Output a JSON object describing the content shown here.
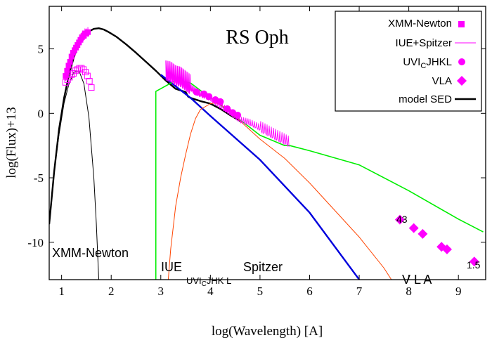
{
  "chart_data": {
    "type": "line",
    "title": "RS Oph",
    "xlabel": "log(Wavelength) [A]",
    "ylabel": "log(Flux)+13",
    "xlim": [
      0.75,
      9.55
    ],
    "ylim": [
      -12.9,
      8.3
    ],
    "xticks": [
      1,
      2,
      3,
      4,
      5,
      6,
      7,
      8,
      9
    ],
    "yticks": [
      -10,
      -5,
      0,
      5
    ],
    "grid": false,
    "legend_position": "top-right",
    "legend": [
      {
        "label": "XMM-Newton",
        "color": "#ff00ff",
        "marker": "square"
      },
      {
        "label": "IUE+Spitzer",
        "color": "#ff00ff",
        "marker": "line"
      },
      {
        "label": "UVI",
        "label_sub": "C",
        "label_tail": "JHKL",
        "color": "#ff00ff",
        "marker": "circle"
      },
      {
        "label": "VLA",
        "color": "#ff00ff",
        "marker": "diamond"
      },
      {
        "label": "model SED",
        "color": "#000000",
        "marker": "thick-line"
      }
    ],
    "annotations": {
      "xmm": "XMM-Newton",
      "iue": "IUE",
      "uv_pre": "UVI",
      "uv_sub": "C",
      "uv_post": "JHK L",
      "spitzer": "Spitzer",
      "vla": "V L A",
      "vla_left": "43",
      "vla_right": "1.5"
    },
    "series": [
      {
        "name": "model SED",
        "color": "#000000",
        "style": "thick",
        "x": [
          0.75,
          0.85,
          0.95,
          1.05,
          1.15,
          1.25,
          1.35,
          1.45,
          1.55,
          1.65,
          1.75,
          1.85,
          1.95,
          2.1,
          2.3,
          2.5,
          2.7,
          2.9,
          3.1,
          3.3,
          3.5,
          3.55,
          3.6,
          3.8,
          4.0,
          4.2,
          4.4,
          4.6
        ],
        "y": [
          -8.6,
          -4.5,
          -1.2,
          1.2,
          3.0,
          4.4,
          5.4,
          6.0,
          6.35,
          6.55,
          6.6,
          6.5,
          6.3,
          5.95,
          5.35,
          4.7,
          4.0,
          3.3,
          2.55,
          1.9,
          1.65,
          1.3,
          1.2,
          0.95,
          0.75,
          0.35,
          -0.15,
          -0.6
        ]
      },
      {
        "name": "thin black (X-ray component)",
        "color": "#000000",
        "style": "thin",
        "x": [
          0.75,
          0.85,
          0.95,
          1.05,
          1.15,
          1.25,
          1.35,
          1.45,
          1.55,
          1.65,
          1.7,
          1.75
        ],
        "y": [
          -8.6,
          -4.5,
          -1.6,
          0.8,
          2.3,
          3.2,
          3.3,
          2.3,
          -0.3,
          -5.0,
          -8.5,
          -13.0
        ]
      },
      {
        "name": "blue component",
        "color": "#0000dd",
        "style": "thick",
        "x": [
          3.0,
          3.6,
          4.0,
          5.0,
          6.0,
          7.0
        ],
        "y": [
          3.0,
          1.2,
          -0.2,
          -3.6,
          -7.7,
          -12.9
        ]
      },
      {
        "name": "green component",
        "color": "#00ee00",
        "style": "medium",
        "x": [
          2.9,
          2.9,
          3.3,
          3.6,
          4.0,
          4.2,
          4.4,
          4.7,
          5.0,
          5.5,
          5.6,
          6.0,
          7.0,
          8.0,
          9.0,
          9.5
        ],
        "y": [
          -12.9,
          1.7,
          2.55,
          2.35,
          1.2,
          0.65,
          0.05,
          -0.8,
          -1.7,
          -2.5,
          -2.5,
          -2.9,
          -4.0,
          -6.0,
          -8.2,
          -9.2
        ]
      },
      {
        "name": "orange-red component",
        "color": "#ff4400",
        "style": "thin",
        "x": [
          3.15,
          3.2,
          3.3,
          3.4,
          3.5,
          3.6,
          3.7,
          3.8,
          4.0,
          4.1,
          4.2,
          4.4,
          4.6,
          5.0,
          5.5,
          6.0,
          6.5,
          7.0,
          7.5,
          7.65
        ],
        "y": [
          -12.9,
          -10.5,
          -7.2,
          -5.0,
          -3.2,
          -1.6,
          -0.4,
          0.3,
          0.75,
          0.8,
          0.7,
          0.15,
          -0.6,
          -2.0,
          -3.5,
          -5.4,
          -7.5,
          -9.6,
          -12.0,
          -12.9
        ]
      },
      {
        "name": "IUE+Spitzer",
        "color": "#ff00ff",
        "style": "noisy",
        "x": [
          3.1,
          3.2,
          3.3,
          3.4,
          3.5,
          3.6,
          3.7,
          3.8,
          4.0,
          4.2,
          4.4,
          4.6,
          4.8,
          5.0,
          5.2,
          5.4,
          5.6
        ],
        "y": [
          3.0,
          2.9,
          2.6,
          2.5,
          2.2,
          1.9,
          1.6,
          1.4,
          1.1,
          0.5,
          0.0,
          -0.6,
          -0.8,
          -1.2,
          -1.6,
          -2.0,
          -2.4
        ]
      }
    ],
    "points": {
      "xmm_filled": {
        "name": "XMM-Newton",
        "color": "#ff00ff",
        "x": [
          1.08,
          1.11,
          1.14,
          1.17,
          1.2,
          1.23,
          1.26,
          1.29,
          1.32,
          1.35,
          1.38,
          1.41,
          1.44,
          1.47,
          1.5,
          1.53
        ],
        "y": [
          2.9,
          3.3,
          3.7,
          4.0,
          4.4,
          4.7,
          4.9,
          5.1,
          5.3,
          5.5,
          5.7,
          5.9,
          6.0,
          6.2,
          6.2,
          6.3
        ]
      },
      "xmm_open": {
        "name": "XMM-Newton (open)",
        "color": "#ff00ff",
        "x": [
          1.08,
          1.12,
          1.16,
          1.2,
          1.24,
          1.28,
          1.32,
          1.36,
          1.4,
          1.44,
          1.48,
          1.52,
          1.56,
          1.6
        ],
        "y": [
          2.4,
          2.6,
          2.8,
          3.0,
          3.1,
          3.3,
          3.4,
          3.5,
          3.5,
          3.4,
          3.2,
          2.9,
          2.5,
          2.0
        ]
      },
      "uv": {
        "name": "UVIcJHKL",
        "color": "#ff00ff",
        "x": [
          3.72,
          3.87,
          3.97,
          4.1,
          4.2,
          4.34,
          4.45,
          4.55
        ],
        "y": [
          1.65,
          1.5,
          1.3,
          1.05,
          0.9,
          0.35,
          0.05,
          -0.15
        ]
      },
      "vla": {
        "name": "VLA",
        "color": "#ff00ff",
        "x": [
          7.82,
          8.1,
          8.28,
          8.66,
          8.77,
          9.32
        ],
        "y": [
          -8.25,
          -8.9,
          -9.35,
          -10.35,
          -10.55,
          -11.5
        ]
      }
    }
  }
}
